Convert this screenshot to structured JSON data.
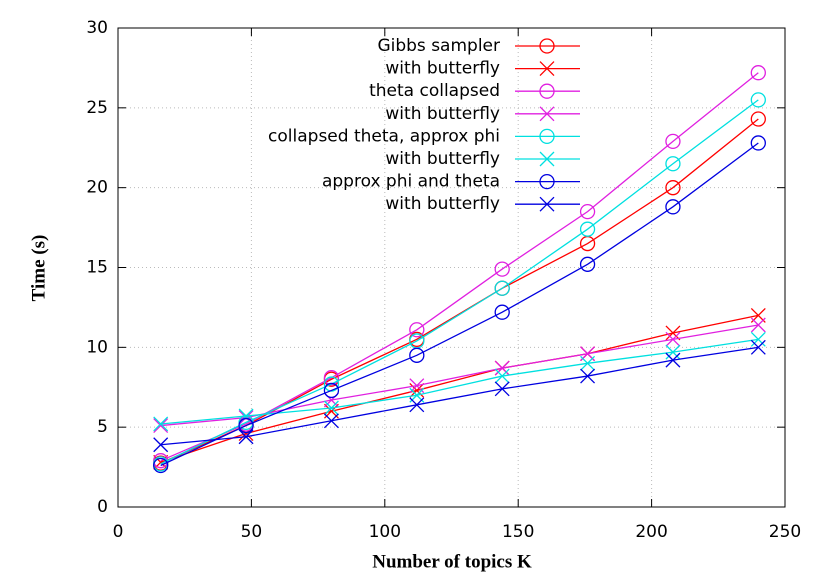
{
  "chart_data": {
    "type": "line",
    "x_label": "Number of topics K",
    "y_label": "Time (s)",
    "xlim": [
      0,
      250
    ],
    "xticks": [
      0,
      50,
      100,
      150,
      200,
      250
    ],
    "ylim": [
      0,
      30
    ],
    "yticks": [
      0,
      5,
      10,
      15,
      20,
      25,
      30
    ],
    "grid": true,
    "legend": "top-right",
    "x": [
      16,
      48,
      80,
      112,
      144,
      176,
      208,
      240
    ],
    "series": [
      {
        "name": "Gibbs sampler",
        "color": "#ff0000",
        "marker": "circle",
        "values": [
          2.75,
          5.1,
          8.0,
          10.5,
          13.7,
          16.5,
          20.0,
          24.3
        ]
      },
      {
        "name": "with butterfly",
        "color": "#ff0000",
        "marker": "x",
        "values": [
          2.8,
          4.6,
          6.0,
          7.3,
          8.7,
          9.6,
          10.9,
          12.0
        ]
      },
      {
        "name": "theta collapsed",
        "color": "#e020e0",
        "marker": "circle",
        "values": [
          2.9,
          5.2,
          8.1,
          11.1,
          14.9,
          18.5,
          22.9,
          27.2
        ]
      },
      {
        "name": "with butterfly",
        "color": "#e020e0",
        "marker": "x",
        "values": [
          5.1,
          5.6,
          6.7,
          7.6,
          8.7,
          9.6,
          10.5,
          11.4
        ]
      },
      {
        "name": "collapsed theta, approx phi",
        "color": "#00e0e0",
        "marker": "circle",
        "values": [
          2.7,
          5.3,
          7.7,
          10.4,
          13.7,
          17.4,
          21.5,
          25.5
        ]
      },
      {
        "name": "with butterfly",
        "color": "#00e0e0",
        "marker": "x",
        "values": [
          5.2,
          5.7,
          6.2,
          7.0,
          8.2,
          9.0,
          9.7,
          10.5
        ]
      },
      {
        "name": "approx phi and theta",
        "color": "#0000e0",
        "marker": "circle",
        "values": [
          2.6,
          5.1,
          7.3,
          9.5,
          12.2,
          15.2,
          18.8,
          22.8
        ]
      },
      {
        "name": "with butterfly",
        "color": "#0000e0",
        "marker": "x",
        "values": [
          3.9,
          4.4,
          5.4,
          6.4,
          7.4,
          8.2,
          9.2,
          10.0
        ]
      }
    ]
  }
}
